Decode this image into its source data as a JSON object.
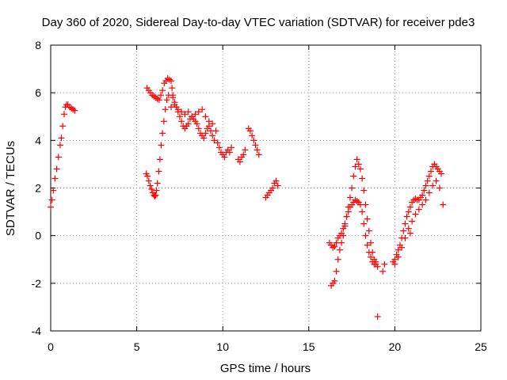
{
  "chart_data": {
    "type": "scatter",
    "title": "Day 360 of 2020, Sidereal Day-to-day VTEC variation (SDTVAR) for receiver pde3",
    "xlabel": "GPS time / hours",
    "ylabel": "SDTVAR / TECUs",
    "xlim": [
      0,
      25
    ],
    "ylim": [
      -4,
      8
    ],
    "xticks": [
      0,
      5,
      10,
      15,
      20,
      25
    ],
    "yticks": [
      -4,
      -2,
      0,
      2,
      4,
      6,
      8
    ],
    "grid": true,
    "marker": "plus",
    "color": "#ff0000",
    "segments": [
      {
        "x": [
          0.0,
          0.08,
          0.15,
          0.25,
          0.35,
          0.45,
          0.55,
          0.62,
          0.7,
          0.78,
          0.85,
          0.92,
          1.0,
          1.1,
          1.2,
          1.3,
          1.4
        ],
        "y": [
          1.2,
          1.5,
          1.9,
          2.4,
          2.8,
          3.3,
          3.8,
          4.1,
          4.6,
          5.1,
          5.4,
          5.5,
          5.5,
          5.4,
          5.35,
          5.3,
          5.25
        ]
      },
      {
        "x": [
          5.55,
          5.62,
          5.7,
          5.78,
          5.86,
          5.93,
          6.0,
          6.05,
          6.1,
          6.15,
          6.2,
          6.28,
          6.35,
          6.42,
          6.5,
          6.58,
          6.66,
          6.75,
          6.85
        ],
        "y": [
          2.6,
          2.5,
          2.3,
          2.1,
          1.95,
          1.8,
          1.7,
          1.65,
          1.7,
          1.9,
          2.2,
          2.7,
          3.2,
          3.8,
          4.3,
          4.8,
          5.3,
          5.7,
          5.9
        ]
      },
      {
        "x": [
          5.6,
          5.7,
          5.8,
          5.9,
          6.0,
          6.1,
          6.2,
          6.3,
          6.4,
          6.5,
          6.6,
          6.7,
          6.8,
          6.9,
          7.0,
          7.05,
          7.1
        ],
        "y": [
          6.2,
          6.1,
          6.0,
          5.9,
          5.85,
          5.8,
          5.75,
          5.7,
          5.9,
          6.1,
          6.4,
          6.5,
          6.6,
          6.55,
          6.5,
          6.2,
          5.9
        ]
      },
      {
        "x": [
          7.1,
          7.2,
          7.3,
          7.4,
          7.5,
          7.6,
          7.7,
          7.8,
          7.9,
          8.0,
          8.1,
          8.2,
          8.3,
          8.4,
          8.5,
          8.6,
          8.7,
          8.8,
          8.9,
          9.0,
          9.1,
          9.2,
          9.3,
          9.4,
          9.5
        ],
        "y": [
          5.8,
          5.6,
          5.4,
          5.2,
          5.0,
          4.8,
          4.6,
          4.5,
          4.6,
          4.7,
          4.9,
          5.0,
          4.9,
          4.8,
          4.7,
          4.5,
          4.3,
          4.2,
          4.1,
          4.3,
          4.5,
          4.6,
          4.4,
          4.2,
          4.0
        ]
      },
      {
        "x": [
          7.0,
          7.2,
          7.4,
          7.6,
          7.8,
          8.0,
          8.2,
          8.4,
          8.6,
          8.8,
          9.0,
          9.2,
          9.4,
          9.6
        ],
        "y": [
          5.4,
          5.5,
          5.3,
          5.2,
          5.1,
          5.2,
          5.0,
          5.1,
          5.2,
          5.3,
          5.0,
          4.8,
          4.7,
          4.4
        ]
      },
      {
        "x": [
          9.7,
          9.8,
          9.9,
          10.0,
          10.1,
          10.2,
          10.3,
          10.4,
          10.5
        ],
        "y": [
          3.9,
          3.7,
          3.5,
          3.4,
          3.3,
          3.5,
          3.6,
          3.5,
          3.7
        ]
      },
      {
        "x": [
          10.9,
          11.0,
          11.1,
          11.2,
          11.3
        ],
        "y": [
          3.2,
          3.1,
          3.3,
          3.4,
          3.6
        ]
      },
      {
        "x": [
          11.5,
          11.6,
          11.7,
          11.8,
          11.9,
          12.0,
          12.1
        ],
        "y": [
          4.5,
          4.4,
          4.2,
          4.0,
          3.8,
          3.6,
          3.4
        ]
      },
      {
        "x": [
          12.5,
          12.6,
          12.7,
          12.8,
          12.9,
          13.0,
          13.1,
          13.2
        ],
        "y": [
          1.6,
          1.7,
          1.8,
          1.9,
          2.0,
          2.2,
          2.3,
          2.1
        ]
      },
      {
        "x": [
          16.2,
          16.3,
          16.4,
          16.5,
          16.6,
          16.7,
          16.8,
          16.9,
          17.0,
          17.1,
          17.2,
          17.3,
          17.4,
          17.5,
          17.6,
          17.7,
          17.8,
          17.9,
          18.0,
          18.1,
          18.2,
          18.3,
          18.4,
          18.5,
          18.6,
          18.7,
          18.8,
          18.9
        ],
        "y": [
          -0.3,
          -0.4,
          -0.5,
          -0.45,
          -0.3,
          -0.1,
          0.0,
          0.1,
          0.3,
          0.5,
          0.8,
          1.0,
          1.2,
          1.3,
          1.4,
          1.5,
          1.45,
          1.4,
          1.3,
          1.0,
          0.5,
          0.0,
          -0.4,
          -0.7,
          -0.9,
          -1.1,
          -1.2,
          -1.1
        ]
      },
      {
        "x": [
          16.3,
          16.4,
          16.5,
          16.6,
          16.7,
          16.8,
          16.9,
          17.0,
          17.1,
          17.2,
          17.3,
          17.4,
          17.5,
          17.6,
          17.7,
          17.8,
          17.9,
          18.0,
          18.1,
          18.2,
          18.3,
          18.4,
          18.5,
          18.6,
          18.7,
          18.8,
          18.9,
          19.0
        ],
        "y": [
          -2.1,
          -2.0,
          -1.9,
          -1.5,
          -1.0,
          -0.6,
          -0.3,
          0.0,
          0.4,
          0.8,
          1.2,
          1.6,
          2.0,
          2.5,
          2.9,
          3.2,
          3.0,
          2.8,
          2.4,
          1.9,
          1.3,
          0.7,
          0.2,
          -0.3,
          -0.7,
          -1.0,
          -1.2,
          -1.3
        ]
      },
      {
        "x": [
          19.0
        ],
        "y": [
          -3.4
        ]
      },
      {
        "x": [
          19.3,
          19.4
        ],
        "y": [
          -1.5,
          -1.2
        ]
      },
      {
        "x": [
          19.9,
          20.0,
          20.1,
          20.2,
          20.3,
          20.4,
          20.5,
          20.6,
          20.7,
          20.8,
          20.9,
          21.0,
          21.1,
          21.2,
          21.3,
          21.4,
          21.5,
          21.6,
          21.7,
          21.8,
          21.9,
          22.0,
          22.1,
          22.2,
          22.3,
          22.4,
          22.5,
          22.6,
          22.7
        ],
        "y": [
          -1.1,
          -1.0,
          -0.8,
          -0.6,
          -0.4,
          -0.1,
          0.2,
          0.5,
          0.8,
          1.0,
          1.2,
          1.4,
          1.5,
          1.55,
          1.5,
          1.5,
          1.6,
          1.7,
          1.9,
          2.1,
          2.3,
          2.5,
          2.7,
          2.9,
          3.0,
          2.9,
          2.8,
          2.7,
          2.6
        ]
      },
      {
        "x": [
          20.0,
          20.2,
          20.4,
          20.6,
          20.8,
          21.0,
          21.2,
          21.4,
          21.6,
          21.8,
          22.0,
          22.2,
          22.4,
          22.6,
          22.8
        ],
        "y": [
          -1.2,
          -0.9,
          -0.5,
          -0.1,
          0.3,
          0.6,
          0.9,
          1.1,
          1.3,
          1.5,
          1.8,
          2.1,
          2.3,
          2.0,
          1.3
        ]
      },
      {
        "x": [
          20.9
        ],
        "y": [
          0.1
        ]
      }
    ]
  }
}
